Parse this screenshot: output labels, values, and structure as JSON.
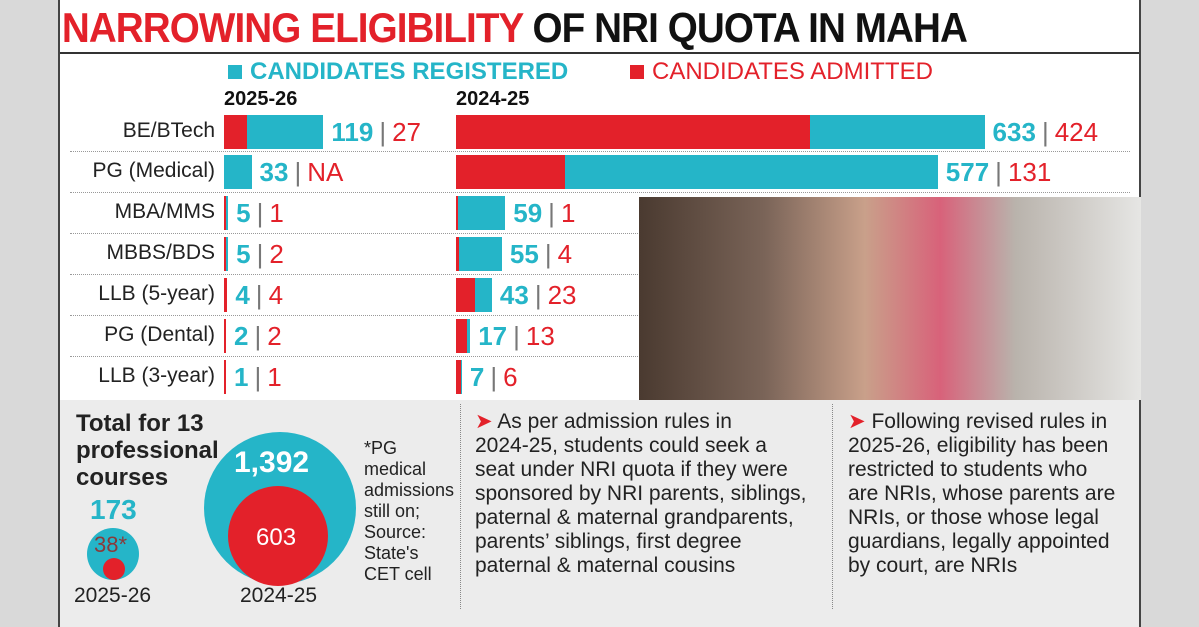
{
  "title": {
    "part1": "NARROWING ELIGIBILITY",
    "part2": "OF NRI QUOTA IN MAHA"
  },
  "colors": {
    "registered": "#25b5c8",
    "admitted": "#e3212a"
  },
  "chart_data": {
    "type": "bar",
    "title": "NARROWING ELIGIBILITY OF NRI QUOTA IN MAHA",
    "legend": [
      "CANDIDATES REGISTERED",
      "CANDIDATES ADMITTED"
    ],
    "periods": [
      "2025-26",
      "2024-25"
    ],
    "categories": [
      "BE/BTech",
      "PG (Medical)",
      "MBA/MMS",
      "MBBS/BDS",
      "LLB (5-year)",
      "PG (Dental)",
      "LLB (3-year)"
    ],
    "series": [
      {
        "name": "Registered 2025-26",
        "values": [
          119,
          33,
          5,
          5,
          4,
          2,
          1
        ]
      },
      {
        "name": "Admitted 2025-26",
        "values": [
          27,
          "NA",
          1,
          2,
          4,
          2,
          1
        ]
      },
      {
        "name": "Registered 2024-25",
        "values": [
          633,
          577,
          59,
          55,
          43,
          17,
          7
        ]
      },
      {
        "name": "Admitted 2024-25",
        "values": [
          424,
          131,
          1,
          4,
          23,
          13,
          6
        ]
      }
    ]
  },
  "totals": {
    "heading": "Total for 13 professional courses",
    "heading_lines": [
      "Total for 13",
      "professional",
      "courses"
    ],
    "y2025": {
      "label": "2025-26",
      "registered": "173",
      "admitted": "38*"
    },
    "y2024": {
      "label": "2024-25",
      "registered": "1,392",
      "admitted": "603"
    },
    "note_lines": [
      "*PG",
      "medical",
      "admissions",
      "still on;",
      "Source:",
      "State's",
      "CET cell"
    ]
  },
  "para1": {
    "arrow": "➤",
    "lines": [
      "As per admission rules in",
      "2024-25, students could seek a",
      "seat under NRI quota if they were",
      "sponsored by NRI parents, siblings,",
      "paternal & maternal grandparents,",
      "parents’ siblings, first degree",
      "paternal & maternal cousins"
    ]
  },
  "para2": {
    "arrow": "➤",
    "lines": [
      "Following revised rules in",
      "2025-26, eligibility has been",
      "restricted to students who",
      "are NRIs, whose parents are",
      "NRIs, or those whose legal",
      "guardians, legally appointed",
      "by court, are NRIs"
    ]
  }
}
